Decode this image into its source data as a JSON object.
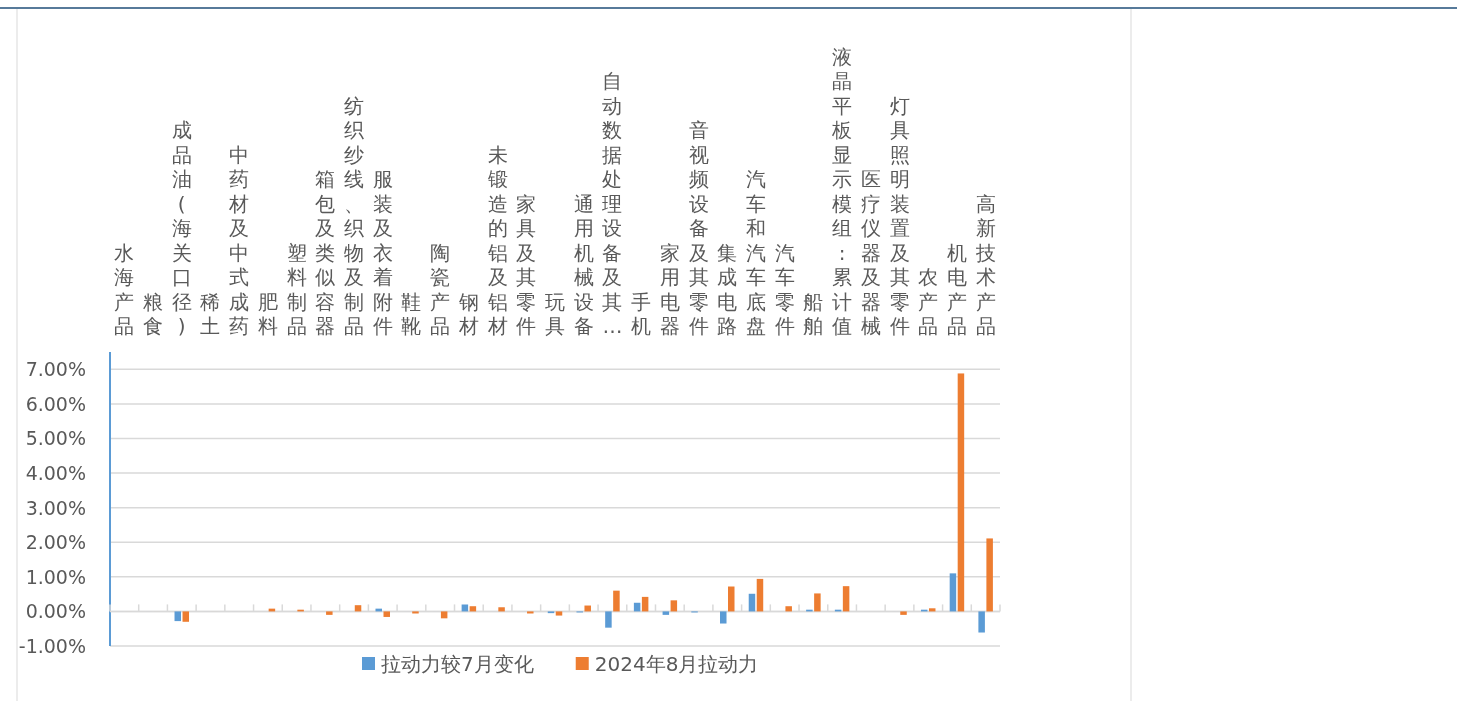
{
  "chart_data": {
    "type": "bar",
    "categories": [
      "水海产品",
      "粮食",
      "成品油(海关口径)",
      "稀土",
      "中药材及中式成药",
      "肥料",
      "塑料制品",
      "箱包及类似容器",
      "纺织纱线、织物及制品",
      "服装及衣着附件",
      "鞋靴",
      "陶瓷产品",
      "钢材",
      "未锻造的铝及铝材",
      "家具及其零件",
      "玩具",
      "通用机械设备",
      "自动数据处理设备及其…",
      "手机",
      "家用电器",
      "音视频设备及其零件",
      "集成电路",
      "汽车和汽车底盘",
      "汽车零件",
      "船舶",
      "液晶平板显示模组:累计值",
      "医疗仪器及器械",
      "灯具照明装置及其零件",
      "农产品",
      "机电产品",
      "高新技术产品"
    ],
    "series": [
      {
        "name": "拉动力较7月变化",
        "color": "#5b9bd5",
        "values": [
          0,
          0,
          -0.28,
          0,
          0,
          null,
          0,
          0,
          null,
          0.08,
          0,
          0,
          0.2,
          0,
          0,
          -0.05,
          -0.03,
          -0.47,
          0.25,
          -0.1,
          -0.03,
          -0.35,
          0.51,
          0,
          0.05,
          0.05,
          0,
          0,
          0.05,
          1.1,
          -0.61
        ]
      },
      {
        "name": "2024年8月拉动力",
        "color": "#ed7d31",
        "values": [
          0,
          0,
          -0.3,
          0,
          0,
          0.08,
          0.05,
          -0.1,
          0.18,
          -0.16,
          -0.06,
          -0.2,
          0.15,
          0.12,
          -0.06,
          -0.12,
          0.17,
          0.6,
          0.42,
          0.32,
          null,
          0.72,
          0.94,
          0.15,
          0.52,
          0.73,
          null,
          -0.1,
          0.09,
          6.88,
          2.11
        ]
      }
    ],
    "ylim": [
      -1,
      7.5
    ],
    "yticks": [
      {
        "value": -1,
        "label": "-1.00%"
      },
      {
        "value": 0,
        "label": "0.00%"
      },
      {
        "value": 1,
        "label": "1.00%"
      },
      {
        "value": 2,
        "label": "2.00%"
      },
      {
        "value": 3,
        "label": "3.00%"
      },
      {
        "value": 4,
        "label": "4.00%"
      },
      {
        "value": 5,
        "label": "5.00%"
      },
      {
        "value": 6,
        "label": "6.00%"
      },
      {
        "value": 7,
        "label": "7.00%"
      }
    ],
    "grid": "y",
    "legend": "bottom"
  }
}
